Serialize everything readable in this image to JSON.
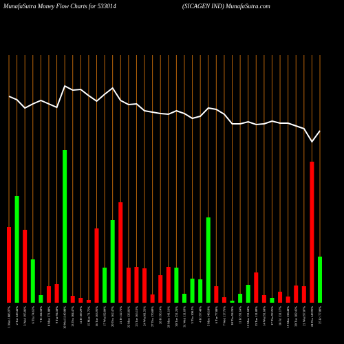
{
  "chart_data": {
    "type": "bar-line",
    "title": "MunafaSutra  Money Flow  Charts for 533014",
    "subtitle": "(SICAGEN  IND) MunafaSutra.com",
    "categories": [
      "1 Mon 1086.97%",
      "2 Tue 349.44%",
      "3 Wed 195.86%",
      "6 Thu 74.65%",
      "7 Fri 84.58%",
      "8 Mon 271.88%",
      "9 Tue 94.50%",
      "10 Wed 1149.08%",
      "13 Thu 104.47%",
      "14 Fri 89.29%",
      "15 Mon 71.75%",
      "16 Tue 163.93%",
      "17 Wed 92.84%",
      "20 Thu 162.47%",
      "21 Fri 52.73%",
      "22 Mon 126.81%",
      "23 Tue 165.13%",
      "24 Wed 81.53%",
      "27 Thu 170.89%",
      "28 Fri 96.14%",
      "29 Mon 141.16%",
      "30 Tue 231.24%",
      "31 Wed 111.69%",
      "3 Thu 108.2%",
      "4 Fri 97.48%",
      "5 Mon 148.10%",
      "6 Tue 77.88%",
      "7 Wed 117.76%",
      "10 Thu 94.24%",
      "11 Fri 91.64%",
      "12 Mon 131.68%",
      "13 Tue 111.89%",
      "14 Wed 91.68%",
      "17 Thu 92.25%",
      "18 Fri 131.17%",
      "19 Mon 138.48%",
      "20 Tue 182.45%",
      "21 Wed 97.07%",
      "24 Thu 149.93%",
      "25 Fri 77.09%"
    ],
    "bar_values": [
      110,
      155,
      106,
      63,
      11,
      24,
      27,
      222,
      10,
      7,
      4,
      108,
      51,
      120,
      146,
      51,
      52,
      50,
      12,
      40,
      52,
      51,
      13,
      35,
      34,
      124,
      24,
      8,
      3,
      13,
      26,
      44,
      11,
      7,
      16,
      9,
      25,
      24,
      205,
      67
    ],
    "bar_colors": [
      "#ff0000",
      "#00ff00",
      "#ff0000",
      "#00ff00",
      "#00ff00",
      "#ff0000",
      "#ff0000",
      "#00ff00",
      "#ff0000",
      "#ff0000",
      "#ff0000",
      "#ff0000",
      "#00ff00",
      "#00ff00",
      "#ff0000",
      "#ff0000",
      "#ff0000",
      "#ff0000",
      "#ff0000",
      "#ff0000",
      "#ff0000",
      "#00ff00",
      "#00ff00",
      "#00ff00",
      "#00ff00",
      "#00ff00",
      "#ff0000",
      "#ff0000",
      "#00ff00",
      "#00ff00",
      "#00ff00",
      "#ff0000",
      "#ff0000",
      "#00ff00",
      "#ff0000",
      "#ff0000",
      "#ff0000",
      "#ff0000",
      "#ff0000",
      "#00ff00"
    ],
    "line_values": [
      300,
      295,
      283,
      289,
      294,
      289,
      284,
      315,
      309,
      310,
      301,
      293,
      303,
      312,
      294,
      288,
      289,
      279,
      277,
      275,
      274,
      279,
      275,
      268,
      271,
      283,
      281,
      274,
      260,
      260,
      263,
      259,
      260,
      264,
      261,
      261,
      257,
      253,
      234,
      250
    ],
    "line_color": "#ffffff",
    "grid_color": "#b8640a",
    "ylim": [
      0,
      360
    ]
  }
}
